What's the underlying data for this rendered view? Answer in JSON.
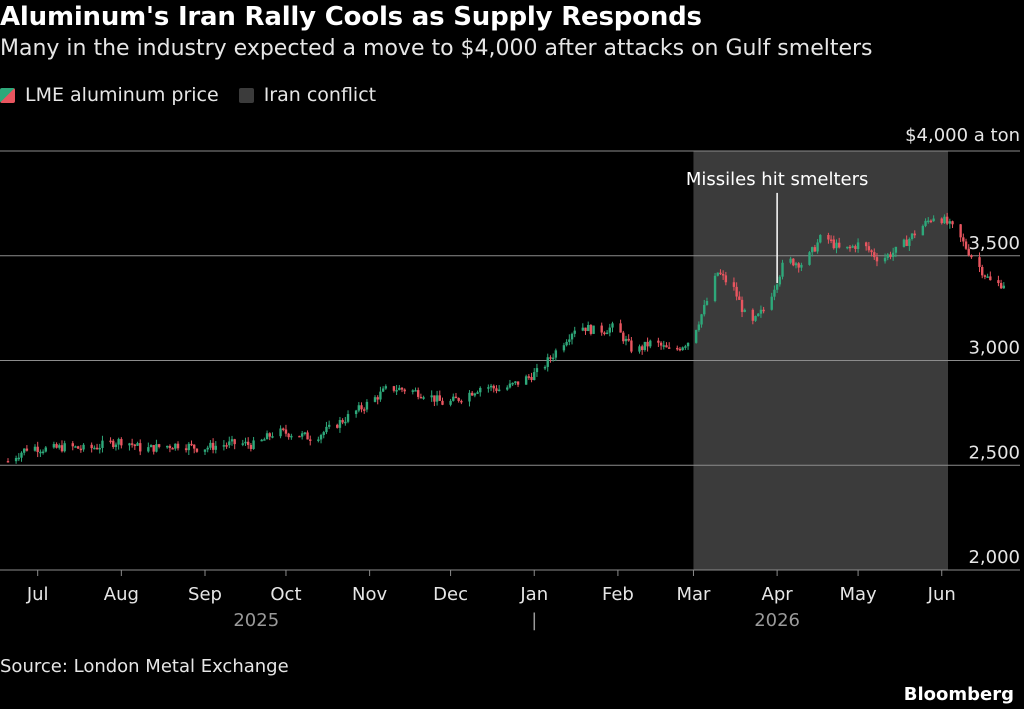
{
  "header": {
    "title": "Aluminum's Iran Rally Cools as Supply Responds",
    "subtitle": "Many in the industry expected a move to $4,000 after attacks on Gulf smelters"
  },
  "legend": {
    "price_label": "LME aluminum price",
    "shade_label": "Iran conflict"
  },
  "footer": {
    "source": "Source: London Metal Exchange",
    "brand": "Bloomberg"
  },
  "colors": {
    "up": "#2ea87a",
    "down": "#e8555f",
    "shade": "#3b3b3b",
    "grid": "#8c8c8c",
    "text": "#e6e6e6"
  },
  "chart_data": {
    "type": "candlestick",
    "y_unit_label": "$4,000 a ton",
    "ylim": [
      2000,
      4000
    ],
    "yticks": [
      4000,
      3500,
      3000,
      2500,
      2000
    ],
    "ytick_labels": [
      "",
      "3,500",
      "3,000",
      "2,500",
      "2,000"
    ],
    "grid": true,
    "x_range": [
      "2025-06-20",
      "2026-06-30"
    ],
    "month_ticks": [
      {
        "label": "Jul",
        "date": "2025-07-01"
      },
      {
        "label": "Aug",
        "date": "2025-08-01"
      },
      {
        "label": "Sep",
        "date": "2025-09-01"
      },
      {
        "label": "Oct",
        "date": "2025-10-01"
      },
      {
        "label": "Nov",
        "date": "2025-11-01"
      },
      {
        "label": "Dec",
        "date": "2025-12-01"
      },
      {
        "label": "Jan",
        "date": "2026-01-01"
      },
      {
        "label": "Feb",
        "date": "2026-02-01"
      },
      {
        "label": "Mar",
        "date": "2026-03-01"
      },
      {
        "label": "Apr",
        "date": "2026-04-01"
      },
      {
        "label": "May",
        "date": "2026-05-01"
      },
      {
        "label": "Jun",
        "date": "2026-06-01"
      }
    ],
    "year_labels": [
      {
        "label": "2025",
        "date": "2025-09-20"
      },
      {
        "label": "|",
        "date": "2026-01-01"
      },
      {
        "label": "2026",
        "date": "2026-04-01"
      }
    ],
    "shaded_range": {
      "start": "2026-03-01",
      "end": "2026-06-25"
    },
    "annotation": {
      "text": "Missiles hit smelters",
      "date": "2026-04-01",
      "value": 3370
    },
    "series": [
      {
        "date": "2025-06-20",
        "close": 2520
      },
      {
        "date": "2025-06-28",
        "close": 2590
      },
      {
        "date": "2025-07-05",
        "close": 2575
      },
      {
        "date": "2025-07-12",
        "close": 2590
      },
      {
        "date": "2025-07-19",
        "close": 2575
      },
      {
        "date": "2025-07-26",
        "close": 2600
      },
      {
        "date": "2025-08-02",
        "close": 2620
      },
      {
        "date": "2025-08-09",
        "close": 2575
      },
      {
        "date": "2025-08-16",
        "close": 2590
      },
      {
        "date": "2025-08-23",
        "close": 2600
      },
      {
        "date": "2025-08-30",
        "close": 2580
      },
      {
        "date": "2025-09-06",
        "close": 2595
      },
      {
        "date": "2025-09-13",
        "close": 2605
      },
      {
        "date": "2025-09-20",
        "close": 2595
      },
      {
        "date": "2025-09-27",
        "close": 2660
      },
      {
        "date": "2025-10-04",
        "close": 2650
      },
      {
        "date": "2025-10-11",
        "close": 2630
      },
      {
        "date": "2025-10-18",
        "close": 2680
      },
      {
        "date": "2025-10-25",
        "close": 2740
      },
      {
        "date": "2025-11-01",
        "close": 2800
      },
      {
        "date": "2025-11-08",
        "close": 2870
      },
      {
        "date": "2025-11-15",
        "close": 2860
      },
      {
        "date": "2025-11-22",
        "close": 2840
      },
      {
        "date": "2025-11-29",
        "close": 2790
      },
      {
        "date": "2025-12-06",
        "close": 2830
      },
      {
        "date": "2025-12-13",
        "close": 2880
      },
      {
        "date": "2025-12-20",
        "close": 2860
      },
      {
        "date": "2025-12-27",
        "close": 2900
      },
      {
        "date": "2026-01-03",
        "close": 2950
      },
      {
        "date": "2026-01-10",
        "close": 3060
      },
      {
        "date": "2026-01-17",
        "close": 3170
      },
      {
        "date": "2026-01-24",
        "close": 3140
      },
      {
        "date": "2026-01-31",
        "close": 3160
      },
      {
        "date": "2026-02-07",
        "close": 3040
      },
      {
        "date": "2026-02-14",
        "close": 3090
      },
      {
        "date": "2026-02-21",
        "close": 3040
      },
      {
        "date": "2026-02-28",
        "close": 3100
      },
      {
        "date": "2026-03-05",
        "close": 3250
      },
      {
        "date": "2026-03-10",
        "close": 3420
      },
      {
        "date": "2026-03-16",
        "close": 3340
      },
      {
        "date": "2026-03-22",
        "close": 3160
      },
      {
        "date": "2026-03-28",
        "close": 3260
      },
      {
        "date": "2026-04-04",
        "close": 3480
      },
      {
        "date": "2026-04-11",
        "close": 3460
      },
      {
        "date": "2026-04-18",
        "close": 3600
      },
      {
        "date": "2026-04-25",
        "close": 3520
      },
      {
        "date": "2026-05-02",
        "close": 3560
      },
      {
        "date": "2026-05-09",
        "close": 3480
      },
      {
        "date": "2026-05-16",
        "close": 3530
      },
      {
        "date": "2026-05-23",
        "close": 3620
      },
      {
        "date": "2026-05-30",
        "close": 3700
      },
      {
        "date": "2026-06-06",
        "close": 3620
      },
      {
        "date": "2026-06-13",
        "close": 3480
      },
      {
        "date": "2026-06-20",
        "close": 3360
      },
      {
        "date": "2026-06-25",
        "close": 3370
      }
    ]
  }
}
